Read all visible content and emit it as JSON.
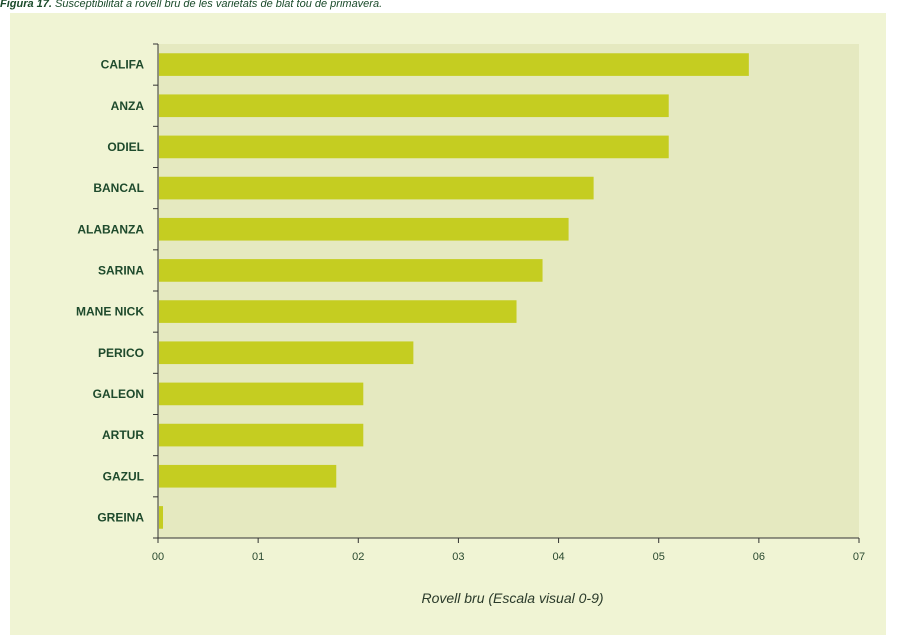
{
  "caption": {
    "prefix": "Figura 17.",
    "text": " Susceptibilitat a rovell bru de les varietats de blat tou de primavera."
  },
  "colors": {
    "panel_bg": "#f0f4d4",
    "plot_bg": "#e5e9c0",
    "bar": "#c5cd21",
    "axis": "#333333"
  },
  "chart_data": {
    "type": "bar",
    "orientation": "horizontal",
    "categories": [
      "CALIFA",
      "ANZA",
      "ODIEL",
      "BANCAL",
      "ALABANZA",
      "SARINA",
      "MANE NICK",
      "PERICO",
      "GALEON",
      "ARTUR",
      "GAZUL",
      "GREINA"
    ],
    "values": [
      5.9,
      5.1,
      5.1,
      4.35,
      4.1,
      3.84,
      3.58,
      2.55,
      2.05,
      2.05,
      1.78,
      0.05
    ],
    "xlim": [
      0,
      7
    ],
    "xticks": [
      "00",
      "01",
      "02",
      "03",
      "04",
      "05",
      "06",
      "07"
    ],
    "xlabel": "Rovell bru (Escala visual 0-9)",
    "ylabel": "",
    "title": "",
    "grid": false,
    "legend": "none"
  }
}
